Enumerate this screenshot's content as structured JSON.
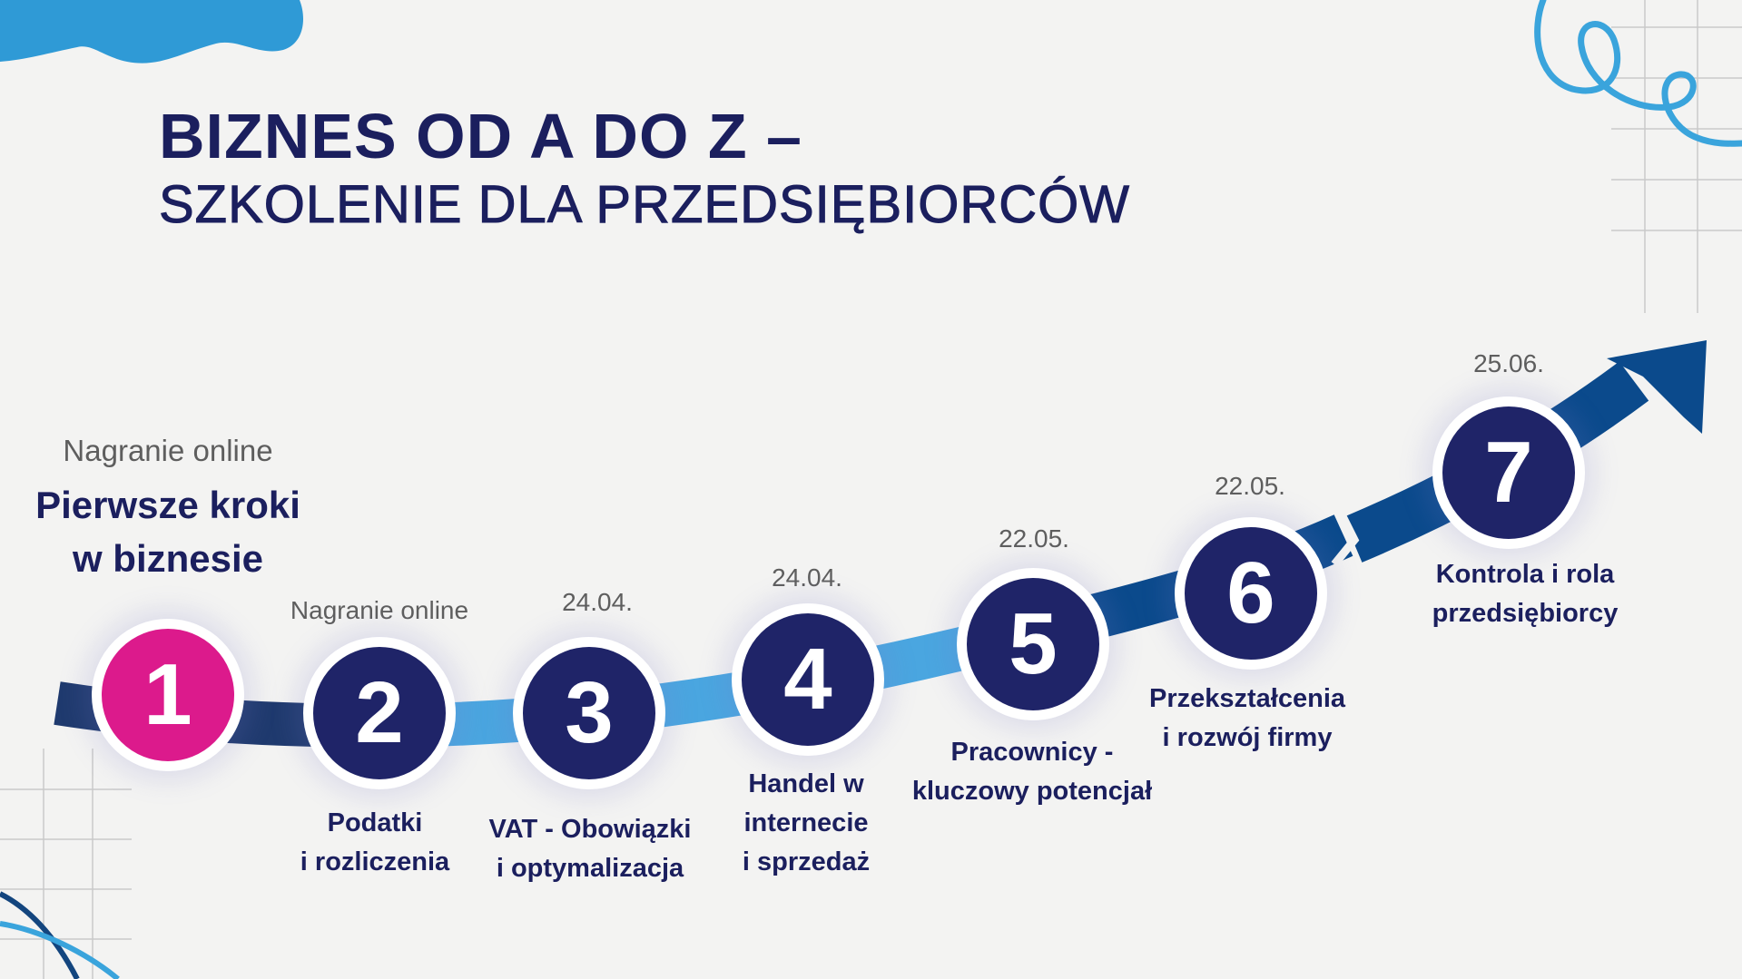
{
  "title": {
    "line1": "BIZNES OD A DO Z –",
    "line2": "SZKOLENIE DLA PRZEDSIĘBIORCÓW"
  },
  "colors": {
    "navy": "#1f2468",
    "pink": "#dc1a8c",
    "light_blue": "#4aa6e0",
    "dark_blue": "#0b4a8c",
    "dark_navy": "#1f3a6e",
    "accent_blue": "#2f9ad6"
  },
  "steps": [
    {
      "number": "1",
      "note": "Nagranie online",
      "label_line1": "Pierwsze kroki",
      "label_line2": "w biznesie",
      "color": "pink"
    },
    {
      "number": "2",
      "note": "Nagranie online",
      "label_line1": "Podatki",
      "label_line2": "i rozliczenia",
      "color": "navy"
    },
    {
      "number": "3",
      "date": "24.04.",
      "label_line1": "VAT - Obowiązki",
      "label_line2": "i optymalizacja",
      "color": "navy"
    },
    {
      "number": "4",
      "date": "24.04.",
      "label_line1": "Handel w",
      "label_line2": "internecie",
      "label_line3": "i sprzedaż",
      "color": "navy"
    },
    {
      "number": "5",
      "date": "22.05.",
      "label_line1": "Pracownicy -",
      "label_line2": "kluczowy potencjał",
      "color": "navy"
    },
    {
      "number": "6",
      "date": "22.05.",
      "label_line1": "Przekształcenia",
      "label_line2": "i rozwój firmy",
      "color": "navy"
    },
    {
      "number": "7",
      "date": "25.06.",
      "label_line1": "Kontrola i rola",
      "label_line2": "przedsiębiorcy",
      "color": "navy"
    }
  ]
}
